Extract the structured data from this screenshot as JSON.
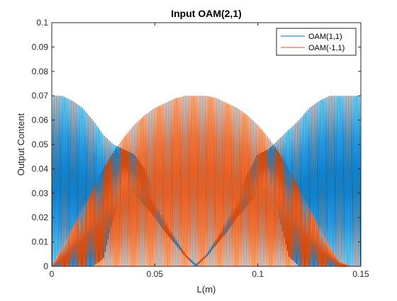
{
  "chart_data": {
    "type": "line",
    "title": "Input OAM(2,1)",
    "xlabel": "L(m)",
    "ylabel": "Output Content",
    "xlim": [
      0,
      0.15
    ],
    "ylim": [
      0,
      0.1
    ],
    "xticks": [
      "0",
      "0.05",
      "0.1",
      "0.15"
    ],
    "yticks": [
      "0",
      "0.01",
      "0.02",
      "0.03",
      "0.04",
      "0.05",
      "0.06",
      "0.07",
      "0.08",
      "0.09",
      "0.1"
    ],
    "legend_position": "top-right",
    "grid": false,
    "oscillation_cycles": 200,
    "series": [
      {
        "name": "OAM(1,1)",
        "color": "#0072BD",
        "envelope_x": [
          0,
          0.005,
          0.01,
          0.015,
          0.02,
          0.025,
          0.03,
          0.035,
          0.04,
          0.045,
          0.05,
          0.055,
          0.06,
          0.065,
          0.07,
          0.075,
          0.08,
          0.085,
          0.09,
          0.095,
          0.1,
          0.105,
          0.11,
          0.115,
          0.12,
          0.125,
          0.13,
          0.135,
          0.14,
          0.145,
          0.15
        ],
        "envelope_y": [
          0.07,
          0.07,
          0.068,
          0.065,
          0.06,
          0.054,
          0.05,
          0.048,
          0.046,
          0.04,
          0.028,
          0.02,
          0.012,
          0.005,
          0.001,
          0.005,
          0.012,
          0.02,
          0.028,
          0.038,
          0.046,
          0.048,
          0.052,
          0.056,
          0.06,
          0.065,
          0.068,
          0.07,
          0.07,
          0.07,
          0.07
        ],
        "trough_x": [
          0,
          0.005,
          0.01,
          0.015,
          0.02,
          0.025,
          0.03,
          0.035,
          0.04,
          0.045,
          0.05,
          0.055,
          0.06,
          0.065,
          0.07,
          0.075,
          0.08,
          0.085,
          0.09,
          0.095,
          0.1,
          0.105,
          0.11,
          0.115,
          0.12,
          0.125,
          0.13,
          0.135,
          0.14,
          0.145,
          0.15
        ],
        "trough_y": [
          0.0,
          0.0,
          0.0,
          0.0,
          0.0,
          0.003,
          0.02,
          0.033,
          0.03,
          0.025,
          0.02,
          0.014,
          0.009,
          0.004,
          0.0,
          0.004,
          0.009,
          0.014,
          0.02,
          0.025,
          0.03,
          0.033,
          0.022,
          0.004,
          0.0,
          0.0,
          0.0,
          0.0,
          0.0,
          0.0,
          0.0
        ]
      },
      {
        "name": "OAM(-1,1)",
        "color": "#D95319",
        "envelope_x": [
          0,
          0.005,
          0.01,
          0.015,
          0.02,
          0.025,
          0.03,
          0.035,
          0.04,
          0.045,
          0.05,
          0.055,
          0.06,
          0.065,
          0.07,
          0.075,
          0.08,
          0.085,
          0.09,
          0.095,
          0.1,
          0.105,
          0.11,
          0.115,
          0.12,
          0.125,
          0.13,
          0.135,
          0.14,
          0.145,
          0.15
        ],
        "envelope_y": [
          0.0,
          0.008,
          0.016,
          0.024,
          0.032,
          0.04,
          0.047,
          0.053,
          0.058,
          0.062,
          0.065,
          0.067,
          0.069,
          0.07,
          0.07,
          0.07,
          0.069,
          0.067,
          0.065,
          0.062,
          0.058,
          0.053,
          0.047,
          0.04,
          0.032,
          0.024,
          0.016,
          0.008,
          0.002,
          0.0,
          0.0
        ],
        "trough_y": [
          0.0,
          0.0,
          0.0,
          0.0,
          0.0,
          0.0,
          0.0,
          0.0,
          0.0,
          0.0,
          0.0,
          0.0,
          0.0,
          0.0,
          0.0,
          0.0,
          0.0,
          0.0,
          0.0,
          0.0,
          0.0,
          0.0,
          0.0,
          0.0,
          0.0,
          0.0,
          0.0,
          0.0,
          0.0,
          0.0,
          0.0
        ]
      }
    ]
  }
}
